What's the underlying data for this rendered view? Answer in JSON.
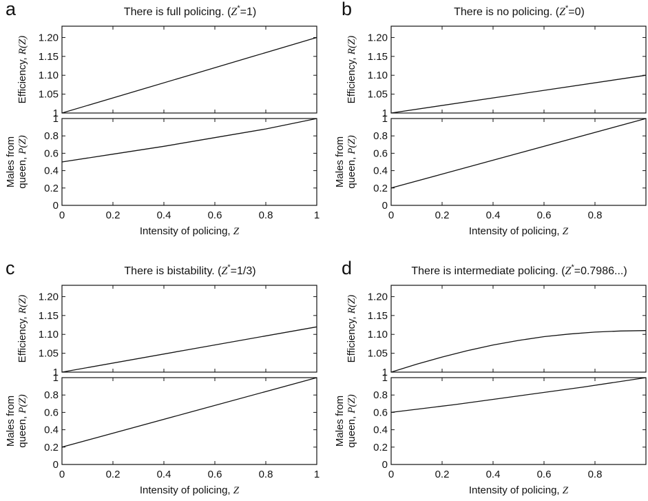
{
  "figure": {
    "panels": [
      {
        "letter": "a",
        "title": "There is full policing. (Z*=1)",
        "title_text": "There is full policing. (",
        "title_var": "Z",
        "title_sup": "*",
        "title_val": "=1)"
      },
      {
        "letter": "b",
        "title": "There is no policing. (Z*=0)",
        "title_text": "There is no policing. (",
        "title_var": "Z",
        "title_sup": "*",
        "title_val": "=0)"
      },
      {
        "letter": "c",
        "title": "There is bistability. (Z*=1/3)",
        "title_text": "There is bistability. (",
        "title_var": "Z",
        "title_sup": "*",
        "title_val": "=1/3)"
      },
      {
        "letter": "d",
        "title": "There is intermediate policing. (Z*=0.7986...)",
        "title_text": "There is intermediate policing. (",
        "title_var": "Z",
        "title_sup": "*",
        "title_val": "=0.7986...)"
      }
    ],
    "labels": {
      "efficiency_text": "Efficiency, ",
      "efficiency_var": "R(Z)",
      "males_line1": "Males from",
      "males_line2_text": "queen, ",
      "males_line2_var": "P(Z)",
      "x_text": "Intensity of policing, ",
      "x_var": "Z"
    }
  },
  "chart_data": [
    {
      "panel": "a",
      "type": "line",
      "title": "There is full policing. (Z*=1)",
      "top": {
        "ylabel": "Efficiency, R(Z)",
        "ylim": [
          1.0,
          1.23
        ],
        "yticks": [
          1,
          1.05,
          1.1,
          1.15,
          1.2
        ],
        "ytick_labels": [
          "1",
          "1.05",
          "1.10",
          "1.15",
          "1.20"
        ],
        "x": [
          0,
          0.25,
          0.5,
          0.75,
          1.0
        ],
        "y": [
          1.0,
          1.05,
          1.1,
          1.15,
          1.2
        ]
      },
      "bottom": {
        "ylabel": "Males from queen, P(Z)",
        "ylim": [
          0,
          1
        ],
        "yticks": [
          0,
          0.2,
          0.4,
          0.6,
          0.8,
          1
        ],
        "ytick_labels": [
          "0",
          "0.2",
          "0.4",
          "0.6",
          "0.8",
          "1"
        ],
        "x": [
          0,
          0.2,
          0.4,
          0.6,
          0.8,
          1.0
        ],
        "y": [
          0.5,
          0.59,
          0.68,
          0.78,
          0.88,
          1.0
        ]
      },
      "xlabel": "Intensity of policing, Z",
      "xlim": [
        0,
        1
      ],
      "xticks": [
        0,
        0.2,
        0.4,
        0.6,
        0.8,
        1
      ],
      "xtick_labels": [
        "0",
        "0.2",
        "0.4",
        "0.6",
        "0.8",
        "1"
      ]
    },
    {
      "panel": "b",
      "type": "line",
      "title": "There is no policing. (Z*=0)",
      "top": {
        "ylabel": "Efficiency, R(Z)",
        "ylim": [
          1.0,
          1.23
        ],
        "yticks": [
          1,
          1.05,
          1.1,
          1.15,
          1.2
        ],
        "ytick_labels": [
          "1",
          "1.05",
          "1.10",
          "1.15",
          "1.20"
        ],
        "x": [
          0,
          0.5,
          1.0
        ],
        "y": [
          1.0,
          1.05,
          1.1
        ]
      },
      "bottom": {
        "ylabel": "Males from queen, P(Z)",
        "ylim": [
          0,
          1
        ],
        "yticks": [
          0,
          0.2,
          0.4,
          0.6,
          0.8,
          1
        ],
        "ytick_labels": [
          "0",
          "0.2",
          "0.4",
          "0.6",
          "0.8",
          "1"
        ],
        "x": [
          0,
          0.5,
          1.0
        ],
        "y": [
          0.2,
          0.6,
          1.0
        ]
      },
      "xlabel": "Intensity of policing, Z",
      "xlim": [
        0,
        1
      ],
      "xticks": [
        0,
        0.2,
        0.4,
        0.6,
        0.8
      ],
      "xtick_labels": [
        "0",
        "0.2",
        "0.4",
        "0.6",
        "0.8"
      ]
    },
    {
      "panel": "c",
      "type": "line",
      "title": "There is bistability. (Z*=1/3)",
      "top": {
        "ylabel": "Efficiency, R(Z)",
        "ylim": [
          1.0,
          1.23
        ],
        "yticks": [
          1,
          1.05,
          1.1,
          1.15,
          1.2
        ],
        "ytick_labels": [
          "1",
          "1.05",
          "1.10",
          "1.15",
          "1.20"
        ],
        "x": [
          0,
          0.5,
          1.0
        ],
        "y": [
          1.0,
          1.06,
          1.12
        ]
      },
      "bottom": {
        "ylabel": "Males from queen, P(Z)",
        "ylim": [
          0,
          1
        ],
        "yticks": [
          0,
          0.2,
          0.4,
          0.6,
          0.8,
          1
        ],
        "ytick_labels": [
          "0",
          "0.2",
          "0.4",
          "0.6",
          "0.8",
          "1"
        ],
        "x": [
          0,
          0.5,
          1.0
        ],
        "y": [
          0.2,
          0.6,
          1.0
        ]
      },
      "xlabel": "Intensity of policing, Z",
      "xlim": [
        0,
        1
      ],
      "xticks": [
        0,
        0.2,
        0.4,
        0.6,
        0.8,
        1
      ],
      "xtick_labels": [
        "0",
        "0.2",
        "0.4",
        "0.6",
        "0.8",
        "1"
      ]
    },
    {
      "panel": "d",
      "type": "line",
      "title": "There is intermediate policing. (Z*=0.7986...)",
      "top": {
        "ylabel": "Efficiency, R(Z)",
        "ylim": [
          1.0,
          1.23
        ],
        "yticks": [
          1,
          1.05,
          1.1,
          1.15,
          1.2
        ],
        "ytick_labels": [
          "1",
          "1.05",
          "1.10",
          "1.15",
          "1.20"
        ],
        "x": [
          0,
          0.1,
          0.2,
          0.3,
          0.4,
          0.5,
          0.6,
          0.7,
          0.8,
          0.9,
          1.0
        ],
        "y": [
          1.0,
          1.021,
          1.04,
          1.057,
          1.072,
          1.084,
          1.094,
          1.101,
          1.106,
          1.109,
          1.11
        ]
      },
      "bottom": {
        "ylabel": "Males from queen, P(Z)",
        "ylim": [
          0,
          1
        ],
        "yticks": [
          0,
          0.2,
          0.4,
          0.6,
          0.8,
          1
        ],
        "ytick_labels": [
          "0",
          "0.2",
          "0.4",
          "0.6",
          "0.8",
          "1"
        ],
        "x": [
          0,
          0.25,
          0.5,
          0.75,
          1.0
        ],
        "y": [
          0.6,
          0.69,
          0.79,
          0.89,
          1.0
        ]
      },
      "xlabel": "Intensity of policing, Z",
      "xlim": [
        0,
        1
      ],
      "xticks": [
        0,
        0.2,
        0.4,
        0.6,
        0.8
      ],
      "xtick_labels": [
        "0",
        "0.2",
        "0.4",
        "0.6",
        "0.8"
      ]
    }
  ]
}
